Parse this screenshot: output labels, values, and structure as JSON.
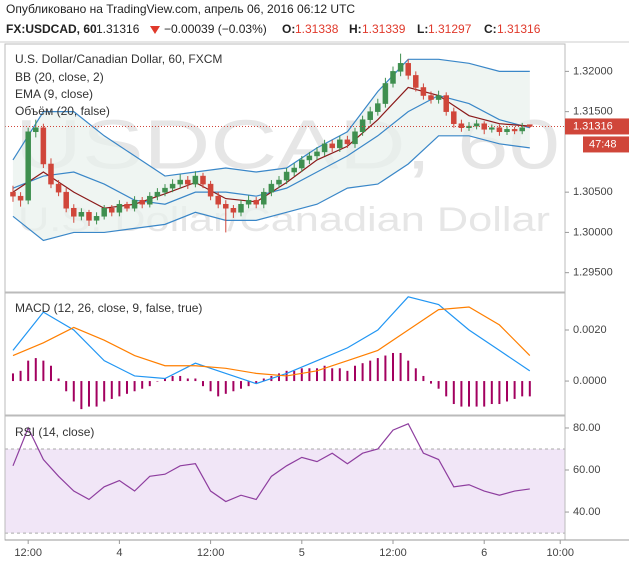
{
  "header": {
    "published": "Опубликовано на TradingView.com, апрель 06, 2016 06:12 UTC",
    "symbol": "FX:USDCAD, 60",
    "change": "−0.00039 (−0.03%)",
    "ohlc_labels": [
      "O:",
      "H:",
      "L:",
      "C:"
    ],
    "countdown": "47:48"
  },
  "chart_data": [
    {
      "type": "candlestick",
      "title": "U.S. Dollar/Canadian Dollar, 60, FXCM",
      "watermark": "USDCAD, 60",
      "watermark_subtitle": "U.S. Dollar/Canadian Dollar",
      "indicators": [
        "BB (20, close, 2)",
        "EMA (9, close)",
        "Объём (20, false)"
      ],
      "up_color": "#3f8f4f",
      "down_color": "#d0463a",
      "band_fill": "#e8f1ec",
      "ohlc": [
        [
          1.305,
          1.3058,
          1.3038,
          1.3045
        ],
        [
          1.3045,
          1.305,
          1.3032,
          1.304
        ],
        [
          1.304,
          1.313,
          1.3035,
          1.3125
        ],
        [
          1.3125,
          1.314,
          1.3118,
          1.313
        ],
        [
          1.313,
          1.3135,
          1.308,
          1.3085
        ],
        [
          1.3085,
          1.3092,
          1.3055,
          1.306
        ],
        [
          1.306,
          1.3065,
          1.3045,
          1.305
        ],
        [
          1.305,
          1.3055,
          1.3025,
          1.303
        ],
        [
          1.303,
          1.3035,
          1.3012,
          1.302
        ],
        [
          1.302,
          1.303,
          1.3015,
          1.3025
        ],
        [
          1.3025,
          1.3028,
          1.3008,
          1.3015
        ],
        [
          1.3015,
          1.3025,
          1.301,
          1.302
        ],
        [
          1.302,
          1.3034,
          1.3016,
          1.303
        ],
        [
          1.303,
          1.3034,
          1.302,
          1.3025
        ],
        [
          1.3025,
          1.304,
          1.302,
          1.3035
        ],
        [
          1.3035,
          1.3038,
          1.3026,
          1.303
        ],
        [
          1.303,
          1.3045,
          1.3026,
          1.304
        ],
        [
          1.304,
          1.3044,
          1.303,
          1.3035
        ],
        [
          1.3035,
          1.305,
          1.3031,
          1.3045
        ],
        [
          1.3045,
          1.3055,
          1.304,
          1.305
        ],
        [
          1.305,
          1.306,
          1.3045,
          1.3055
        ],
        [
          1.3055,
          1.3066,
          1.305,
          1.306
        ],
        [
          1.306,
          1.3072,
          1.3055,
          1.3065
        ],
        [
          1.3065,
          1.307,
          1.3054,
          1.306
        ],
        [
          1.306,
          1.3076,
          1.3056,
          1.307
        ],
        [
          1.307,
          1.3074,
          1.3055,
          1.306
        ],
        [
          1.306,
          1.3064,
          1.304,
          1.3045
        ],
        [
          1.3045,
          1.305,
          1.303,
          1.3035
        ],
        [
          1.3035,
          1.304,
          1.3,
          1.303
        ],
        [
          1.303,
          1.3034,
          1.3018,
          1.3025
        ],
        [
          1.3025,
          1.304,
          1.302,
          1.3035
        ],
        [
          1.3035,
          1.3046,
          1.303,
          1.304
        ],
        [
          1.304,
          1.3044,
          1.303,
          1.3035
        ],
        [
          1.3035,
          1.3055,
          1.303,
          1.305
        ],
        [
          1.305,
          1.3065,
          1.3045,
          1.306
        ],
        [
          1.306,
          1.307,
          1.3055,
          1.3065
        ],
        [
          1.3065,
          1.308,
          1.306,
          1.3075
        ],
        [
          1.3075,
          1.3086,
          1.307,
          1.308
        ],
        [
          1.308,
          1.3095,
          1.3075,
          1.309
        ],
        [
          1.309,
          1.31,
          1.3085,
          1.3095
        ],
        [
          1.3095,
          1.3106,
          1.309,
          1.31
        ],
        [
          1.31,
          1.3115,
          1.3095,
          1.311
        ],
        [
          1.311,
          1.3115,
          1.31,
          1.3105
        ],
        [
          1.3105,
          1.312,
          1.31,
          1.3115
        ],
        [
          1.3115,
          1.312,
          1.3105,
          1.311
        ],
        [
          1.311,
          1.313,
          1.3105,
          1.3125
        ],
        [
          1.3125,
          1.3145,
          1.312,
          1.314
        ],
        [
          1.314,
          1.3156,
          1.3135,
          1.315
        ],
        [
          1.315,
          1.3166,
          1.3145,
          1.316
        ],
        [
          1.316,
          1.3192,
          1.3155,
          1.3185
        ],
        [
          1.3185,
          1.3206,
          1.318,
          1.32
        ],
        [
          1.32,
          1.3222,
          1.3194,
          1.321
        ],
        [
          1.321,
          1.3215,
          1.319,
          1.3195
        ],
        [
          1.3195,
          1.32,
          1.3175,
          1.318
        ],
        [
          1.318,
          1.3185,
          1.3165,
          1.317
        ],
        [
          1.317,
          1.3175,
          1.316,
          1.3165
        ],
        [
          1.3165,
          1.3176,
          1.316,
          1.317
        ],
        [
          1.317,
          1.3174,
          1.3145,
          1.315
        ],
        [
          1.315,
          1.3155,
          1.313,
          1.3135
        ],
        [
          1.3135,
          1.314,
          1.3125,
          1.313
        ],
        [
          1.313,
          1.3137,
          1.3126,
          1.3132
        ],
        [
          1.3132,
          1.314,
          1.3128,
          1.3135
        ],
        [
          1.3135,
          1.3138,
          1.3122,
          1.3128
        ],
        [
          1.3128,
          1.3134,
          1.3124,
          1.313
        ],
        [
          1.313,
          1.3134,
          1.312,
          1.3125
        ],
        [
          1.3125,
          1.3132,
          1.3121,
          1.3128
        ],
        [
          1.3128,
          1.3131,
          1.3122,
          1.3126
        ],
        [
          1.3126,
          1.3136,
          1.3122,
          1.313
        ],
        [
          1.31338,
          1.31339,
          1.31297,
          1.31316
        ]
      ],
      "series": [
        {
          "color": "#3a87c8",
          "x": [
            0,
            4,
            8,
            12,
            16,
            20,
            24,
            28,
            32,
            36,
            40,
            44,
            48,
            52,
            56,
            60,
            64,
            68
          ],
          "values": [
            1.309,
            1.315,
            1.315,
            1.312,
            1.3095,
            1.307,
            1.3075,
            1.308,
            1.3075,
            1.308,
            1.3105,
            1.3125,
            1.3175,
            1.3215,
            1.3215,
            1.321,
            1.32,
            1.32
          ]
        },
        {
          "color": "#3a87c8",
          "x": [
            0,
            4,
            8,
            12,
            16,
            20,
            24,
            28,
            32,
            36,
            40,
            44,
            48,
            52,
            56,
            60,
            64,
            68
          ],
          "values": [
            1.3055,
            1.307,
            1.3075,
            1.306,
            1.304,
            1.3035,
            1.305,
            1.305,
            1.3045,
            1.3055,
            1.3075,
            1.3095,
            1.312,
            1.315,
            1.317,
            1.316,
            1.314,
            1.313
          ]
        },
        {
          "color": "#3a87c8",
          "x": [
            0,
            4,
            8,
            12,
            16,
            20,
            24,
            28,
            32,
            36,
            40,
            44,
            48,
            52,
            56,
            60,
            64,
            68
          ],
          "values": [
            1.302,
            1.299,
            1.3,
            1.3,
            1.3005,
            1.301,
            1.3025,
            1.3015,
            1.3015,
            1.3025,
            1.3035,
            1.3055,
            1.306,
            1.3085,
            1.312,
            1.312,
            1.311,
            1.3105
          ]
        },
        {
          "color": "#8b1a1a",
          "x": [
            0,
            4,
            8,
            12,
            16,
            20,
            24,
            28,
            32,
            36,
            40,
            44,
            48,
            52,
            56,
            60,
            64,
            68
          ],
          "values": [
            1.305,
            1.3075,
            1.305,
            1.303,
            1.3035,
            1.3048,
            1.3062,
            1.3042,
            1.3038,
            1.3062,
            1.309,
            1.3107,
            1.314,
            1.318,
            1.317,
            1.3145,
            1.3135,
            1.3132
          ]
        }
      ],
      "ylim": [
        1.2926,
        1.3234
      ],
      "yticks": [
        {
          "value": 1.32,
          "label": "1.32000"
        },
        {
          "value": 1.315,
          "label": "1.31500"
        },
        {
          "value": 1.305,
          "label": "1.30500"
        },
        {
          "value": 1.3,
          "label": "1.30000"
        },
        {
          "value": 1.295,
          "label": "1.29500"
        }
      ]
    },
    {
      "type": "macd",
      "title": "MACD (12, 26, close, 9, false, true)",
      "histogram_color": "#a3005f",
      "series": [
        {
          "color": "#2196f3",
          "x": [
            0,
            4,
            8,
            12,
            16,
            20,
            24,
            28,
            32,
            36,
            40,
            44,
            48,
            52,
            56,
            60,
            64,
            68
          ],
          "values": [
            0.0012,
            0.0027,
            0.002,
            0.0008,
            0.0002,
            0.0001,
            0.0007,
            0.0003,
            -0.0001,
            0.0003,
            0.0008,
            0.0013,
            0.002,
            0.0033,
            0.003,
            0.002,
            0.0012,
            0.0004
          ]
        },
        {
          "color": "#ff7f00",
          "x": [
            0,
            4,
            8,
            12,
            16,
            20,
            24,
            28,
            32,
            36,
            40,
            44,
            48,
            52,
            56,
            60,
            64,
            68
          ],
          "values": [
            0.001,
            0.0015,
            0.0021,
            0.0016,
            0.001,
            0.0006,
            0.0006,
            0.0005,
            0.0003,
            0.0002,
            0.0004,
            0.0008,
            0.0012,
            0.002,
            0.0028,
            0.0029,
            0.0022,
            0.001
          ]
        }
      ],
      "histogram": [
        0.0003,
        0.0004,
        0.0008,
        0.0009,
        0.0008,
        0.0006,
        0.0001,
        -0.0004,
        -0.0008,
        -0.0011,
        -0.001,
        -0.001,
        -0.0008,
        -0.0007,
        -0.0006,
        -0.0005,
        -0.0004,
        -0.0003,
        -0.0002,
        0,
        0.0001,
        0.0002,
        0.0002,
        0.0001,
        0.0001,
        -0.0002,
        -0.0004,
        -0.0006,
        -0.0005,
        -0.0004,
        -0.0003,
        -0.0002,
        -0.0001,
        0.0001,
        0.0002,
        0.0003,
        0.0004,
        0.0004,
        0.0005,
        0.0005,
        0.0005,
        0.0006,
        0.0005,
        0.0005,
        0.0004,
        0.0006,
        0.0007,
        0.0008,
        0.0009,
        0.001,
        0.0011,
        0.0011,
        0.0008,
        0.0005,
        0.0002,
        -0.0001,
        -0.0003,
        -0.0006,
        -0.0009,
        -0.001,
        -0.001,
        -0.001,
        -0.001,
        -0.0009,
        -0.0009,
        -0.0008,
        -0.0007,
        -0.0006,
        -0.0006
      ],
      "ylim": [
        -0.00133,
        0.00345
      ],
      "yticks": [
        {
          "value": 0.002,
          "label": "0.0020"
        },
        {
          "value": 0,
          "label": "0.0000"
        }
      ]
    },
    {
      "type": "rsi",
      "title": "RSI (14, close)",
      "band": [
        30,
        70
      ],
      "band_fill": "#f1e6f7",
      "series": [
        {
          "color": "#8e3e9f",
          "x": [
            0,
            2,
            4,
            6,
            8,
            10,
            12,
            14,
            16,
            18,
            20,
            22,
            24,
            26,
            28,
            30,
            32,
            34,
            36,
            38,
            40,
            42,
            44,
            46,
            48,
            50,
            52,
            54,
            56,
            58,
            60,
            62,
            64,
            66,
            68
          ],
          "values": [
            62,
            80,
            65,
            57,
            50,
            46,
            52,
            55,
            50,
            57,
            58,
            62,
            63,
            50,
            45,
            48,
            46,
            57,
            62,
            66,
            64,
            68,
            63,
            68,
            70,
            79,
            82,
            68,
            65,
            52,
            53,
            50,
            48,
            50,
            51
          ]
        }
      ],
      "ylim": [
        26.7,
        85.7
      ],
      "yticks": [
        {
          "value": 80,
          "label": "80.00"
        },
        {
          "value": 60,
          "label": "60.00"
        },
        {
          "value": 40,
          "label": "40.00"
        }
      ],
      "xlim": [
        -1.05,
        72.63
      ],
      "xticks": [
        {
          "value": 2,
          "label": "12:00"
        },
        {
          "value": 14,
          "label": "4"
        },
        {
          "value": 26,
          "label": "12:00"
        },
        {
          "value": 38,
          "label": "5"
        },
        {
          "value": 50,
          "label": "12:00"
        },
        {
          "value": 62,
          "label": "6"
        },
        {
          "value": 72,
          "label": "10:00"
        }
      ]
    }
  ]
}
